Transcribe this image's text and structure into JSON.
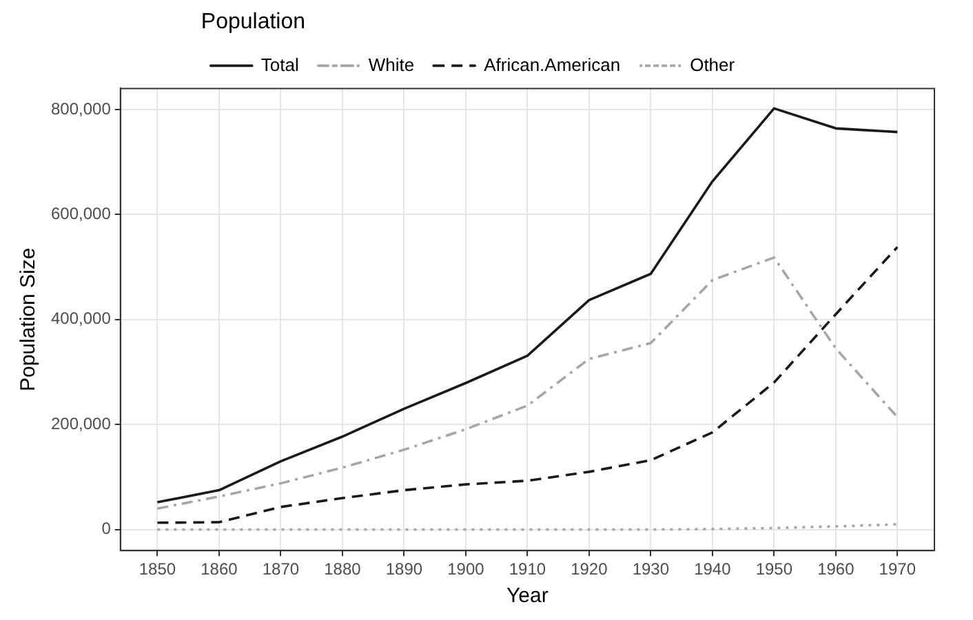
{
  "chart_data": {
    "type": "line",
    "xlabel": "Year",
    "ylabel": "Population Size",
    "legend_title": "Population",
    "legend": "top",
    "grid": true,
    "marker": "none",
    "x": [
      1850,
      1860,
      1870,
      1880,
      1890,
      1900,
      1910,
      1920,
      1930,
      1940,
      1950,
      1960,
      1970
    ],
    "xlim": [
      1844,
      1976
    ],
    "xticks": [
      1850,
      1860,
      1870,
      1880,
      1890,
      1900,
      1910,
      1920,
      1930,
      1940,
      1950,
      1960,
      1970
    ],
    "ylim": [
      -40000,
      840000
    ],
    "yticks": [
      {
        "value": 0,
        "label": "0"
      },
      {
        "value": 200000,
        "label": "200,000"
      },
      {
        "value": 400000,
        "label": "400,000"
      },
      {
        "value": 600000,
        "label": "600,000"
      },
      {
        "value": 800000,
        "label": "800,000"
      }
    ],
    "series": [
      {
        "name": "Total",
        "color": "#1a1a1a",
        "line_style": "solid",
        "values": [
          52000,
          75000,
          130000,
          177000,
          230000,
          279000,
          331000,
          437000,
          487000,
          663000,
          802000,
          764000,
          757000
        ]
      },
      {
        "name": "White",
        "color": "#a6a6a6",
        "line_style": "dashdot",
        "values": [
          40000,
          63000,
          88000,
          118000,
          152000,
          191000,
          236000,
          325000,
          355000,
          475000,
          518000,
          345000,
          214000
        ]
      },
      {
        "name": "African.American",
        "color": "#1a1a1a",
        "line_style": "dashed",
        "values": [
          13000,
          14000,
          43000,
          60000,
          75000,
          86000,
          93000,
          110000,
          132000,
          185000,
          280000,
          410000,
          538000
        ]
      },
      {
        "name": "Other",
        "color": "#a6a6a6",
        "line_style": "dotted",
        "values": [
          0,
          0,
          0,
          0,
          0,
          0,
          0,
          0,
          0,
          1000,
          3000,
          6000,
          10000
        ]
      }
    ]
  }
}
